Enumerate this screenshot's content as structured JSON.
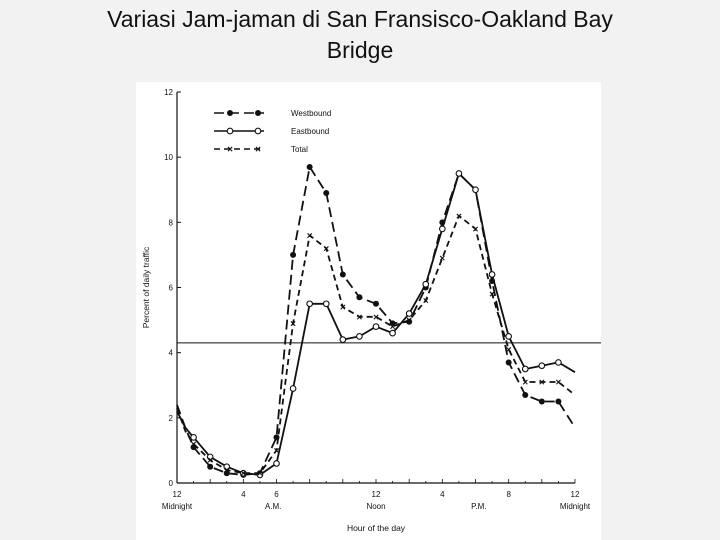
{
  "slide": {
    "title_line1": "Variasi Jam-jaman di San Fransisco-Oakland Bay",
    "title_line2": "Bridge"
  },
  "chart_data": {
    "type": "line",
    "title": "",
    "xlabel": "Hour of the day",
    "ylabel": "Percent of daily traffic",
    "xlim": [
      0,
      24
    ],
    "ylim": [
      0,
      12
    ],
    "x_ticks": [
      {
        "x": 0,
        "label": "12",
        "sub": "Midnight"
      },
      {
        "x": 4,
        "label": "4",
        "sub": ""
      },
      {
        "x": 6,
        "label": "6",
        "sub": ""
      },
      {
        "x": 12,
        "label": "12",
        "sub": "Noon"
      },
      {
        "x": 16,
        "label": "4",
        "sub": ""
      },
      {
        "x": 20,
        "label": "8",
        "sub": ""
      },
      {
        "x": 24,
        "label": "12",
        "sub": "Midnight"
      }
    ],
    "x_period_labels": [
      {
        "x": 5.8,
        "label": "A.M."
      },
      {
        "x": 18.2,
        "label": "P.M."
      }
    ],
    "y_ticks": [
      0,
      2,
      4,
      6,
      8,
      10,
      12
    ],
    "reference_line_y": 4.3,
    "legend_position": "top-left",
    "series": [
      {
        "name": "Westbound",
        "marker": "filled-circle",
        "dash": "10,5",
        "x": [
          0,
          0.5,
          1,
          2,
          3,
          4,
          5,
          6,
          7,
          8,
          9,
          10,
          11,
          12,
          13,
          14,
          15,
          16,
          17,
          18,
          19,
          20,
          21,
          22,
          23,
          24
        ],
        "y": [
          2.4,
          1.7,
          1.1,
          0.5,
          0.3,
          0.25,
          0.3,
          1.4,
          7.0,
          9.7,
          8.9,
          6.4,
          5.7,
          5.5,
          4.9,
          4.95,
          6.0,
          8.0,
          9.5,
          9.0,
          6.2,
          3.7,
          2.7,
          2.5,
          2.5,
          1.7
        ]
      },
      {
        "name": "Eastbound",
        "marker": "open-circle",
        "dash": "",
        "x": [
          0,
          0.5,
          1,
          2,
          3,
          4,
          5,
          6,
          7,
          8,
          9,
          10,
          11,
          12,
          13,
          14,
          15,
          16,
          17,
          18,
          19,
          20,
          21,
          22,
          23,
          24
        ],
        "y": [
          2.2,
          1.7,
          1.4,
          0.8,
          0.5,
          0.3,
          0.25,
          0.6,
          2.9,
          5.5,
          5.5,
          4.4,
          4.5,
          4.8,
          4.6,
          5.2,
          6.1,
          7.8,
          9.5,
          9.0,
          6.4,
          4.5,
          3.5,
          3.6,
          3.7,
          3.4
        ]
      },
      {
        "name": "Total",
        "marker": "x",
        "dash": "6,4",
        "x": [
          0,
          0.5,
          1,
          2,
          3,
          4,
          5,
          6,
          7,
          8,
          9,
          10,
          11,
          12,
          13,
          14,
          15,
          16,
          17,
          18,
          19,
          20,
          21,
          22,
          23,
          24
        ],
        "y": [
          2.3,
          1.6,
          1.2,
          0.7,
          0.4,
          0.3,
          0.3,
          1.0,
          4.9,
          7.6,
          7.2,
          5.4,
          5.1,
          5.1,
          4.8,
          5.0,
          5.6,
          6.9,
          8.2,
          7.8,
          5.8,
          4.1,
          3.1,
          3.1,
          3.1,
          2.7
        ]
      }
    ]
  }
}
